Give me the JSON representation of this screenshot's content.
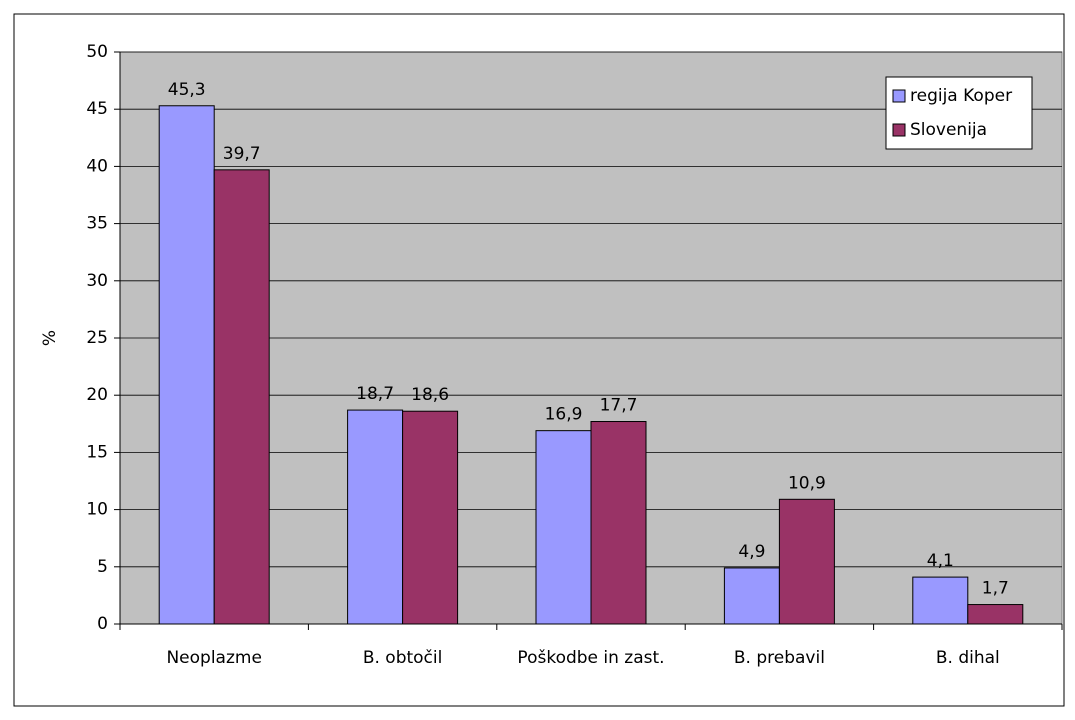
{
  "chart_data": {
    "type": "bar",
    "y_label": "%",
    "categories": [
      "Neoplazme",
      "B. obtočil",
      "Poškodbe in zast.",
      "B. prebavil",
      "B. dihal"
    ],
    "series": [
      {
        "name": "regija Koper",
        "color": "#9999ff",
        "values": [
          45.3,
          18.7,
          16.9,
          4.9,
          4.1
        ],
        "value_labels": [
          "45,3",
          "18,7",
          "16,9",
          "4,9",
          "4,1"
        ]
      },
      {
        "name": "Slovenija",
        "color": "#993366",
        "values": [
          39.7,
          18.6,
          17.7,
          10.9,
          1.7
        ],
        "value_labels": [
          "39,7",
          "18,6",
          "17,7",
          "10,9",
          "1,7"
        ]
      }
    ],
    "ylim": [
      0,
      50
    ],
    "yticks": [
      0,
      5,
      10,
      15,
      20,
      25,
      30,
      35,
      40,
      45,
      50
    ],
    "grid": true,
    "plot_background": "#c0c0c0",
    "legend": "top-right"
  }
}
